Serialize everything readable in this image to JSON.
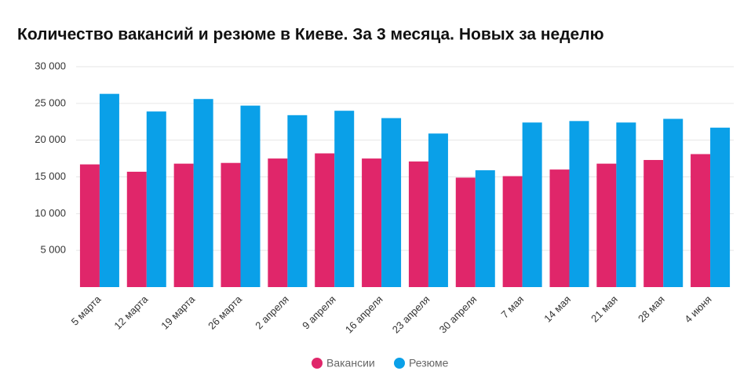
{
  "chart_data": {
    "type": "bar",
    "title": "Количество вакансий и резюме в Киеве. За 3 месяца. Новых за неделю",
    "categories": [
      "5 марта",
      "12 марта",
      "19 марта",
      "26 марта",
      "2 апреля",
      "9 апреля",
      "16 апреля",
      "23 апреля",
      "30 апреля",
      "7 мая",
      "14 мая",
      "21 мая",
      "28 мая",
      "4 июня"
    ],
    "series": [
      {
        "name": "Вакансии",
        "color": "#e0266a",
        "values": [
          16700,
          15700,
          16800,
          16900,
          17500,
          18200,
          17500,
          17100,
          14900,
          15100,
          16000,
          16800,
          17300,
          18100
        ]
      },
      {
        "name": "Резюме",
        "color": "#0aa0e8",
        "values": [
          26300,
          23900,
          25600,
          24700,
          23400,
          24000,
          23000,
          20900,
          15900,
          22400,
          22600,
          22400,
          22900,
          21700
        ]
      }
    ],
    "ylim": [
      0,
      30000
    ],
    "yticks": [
      {
        "value": 5000,
        "label": "5 000"
      },
      {
        "value": 10000,
        "label": "10 000"
      },
      {
        "value": 15000,
        "label": "15 000"
      },
      {
        "value": 20000,
        "label": "20 000"
      },
      {
        "value": 25000,
        "label": "25 000"
      },
      {
        "value": 30000,
        "label": "30 000"
      }
    ],
    "grid": true,
    "legend": "bottom"
  }
}
